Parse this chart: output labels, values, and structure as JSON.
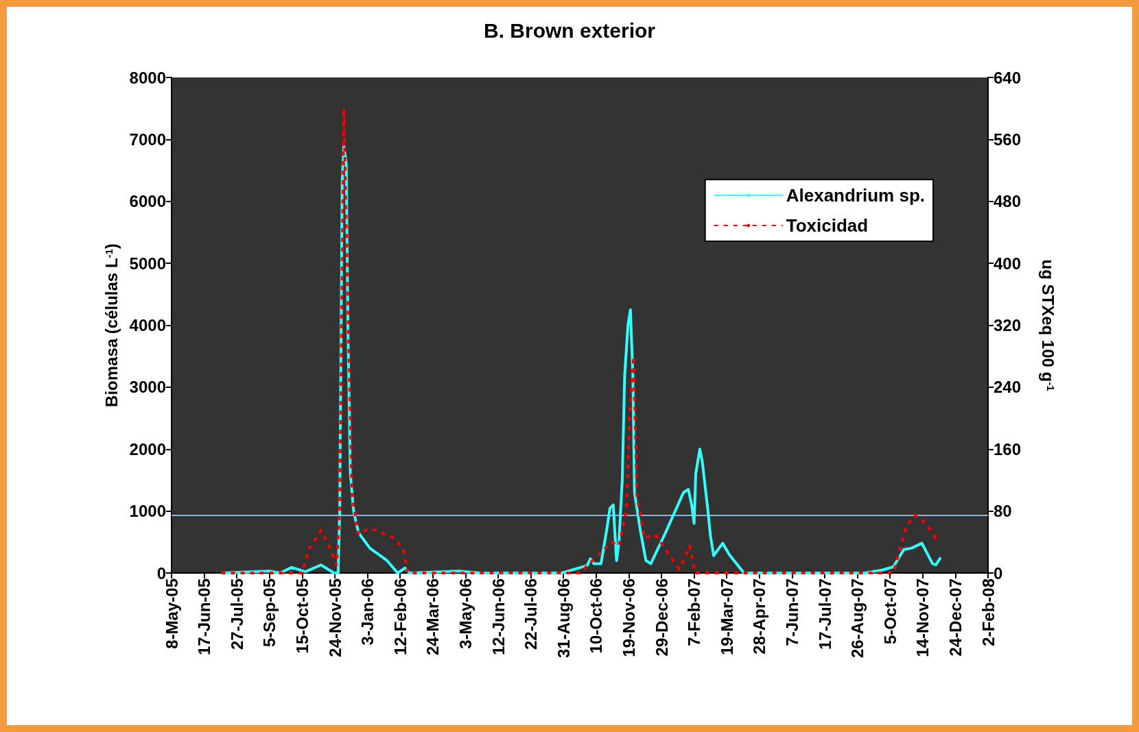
{
  "chart_data": {
    "type": "line",
    "title": "B. Brown exterior",
    "ylabel": "Biomasa (células L$^{-1}$)",
    "y2label": "ug STXeq 100 g$^{-1}$",
    "xlim": [
      "2005-05-08",
      "2008-02-02"
    ],
    "xticks": [
      {
        "value": "2005-05-08",
        "label": "8-May-05"
      },
      {
        "value": "2005-06-17",
        "label": "17-Jun-05"
      },
      {
        "value": "2005-07-27",
        "label": "27-Jul-05"
      },
      {
        "value": "2005-09-05",
        "label": "5-Sep-05"
      },
      {
        "value": "2005-10-15",
        "label": "15-Oct-05"
      },
      {
        "value": "2005-11-24",
        "label": "24-Nov-05"
      },
      {
        "value": "2006-01-03",
        "label": "3-Jan-06"
      },
      {
        "value": "2006-02-12",
        "label": "12-Feb-06"
      },
      {
        "value": "2006-03-24",
        "label": "24-Mar-06"
      },
      {
        "value": "2006-05-03",
        "label": "3-May-06"
      },
      {
        "value": "2006-06-12",
        "label": "12-Jun-06"
      },
      {
        "value": "2006-07-22",
        "label": "22-Jul-06"
      },
      {
        "value": "2006-08-31",
        "label": "31-Aug-06"
      },
      {
        "value": "2006-10-10",
        "label": "10-Oct-06"
      },
      {
        "value": "2006-11-19",
        "label": "19-Nov-06"
      },
      {
        "value": "2006-12-29",
        "label": "29-Dec-06"
      },
      {
        "value": "2007-02-07",
        "label": "7-Feb-07"
      },
      {
        "value": "2007-03-19",
        "label": "19-Mar-07"
      },
      {
        "value": "2007-04-28",
        "label": "28-Apr-07"
      },
      {
        "value": "2007-06-07",
        "label": "7-Jun-07"
      },
      {
        "value": "2007-07-17",
        "label": "17-Jul-07"
      },
      {
        "value": "2007-08-26",
        "label": "26-Aug-07"
      },
      {
        "value": "2007-10-05",
        "label": "5-Oct-07"
      },
      {
        "value": "2007-11-14",
        "label": "14-Nov-07"
      },
      {
        "value": "2007-12-24",
        "label": "24-Dec-07"
      },
      {
        "value": "2008-02-02",
        "label": "2-Feb-08"
      }
    ],
    "ylim": [
      0,
      8000
    ],
    "yticks": [
      0,
      1000,
      2000,
      3000,
      4000,
      5000,
      6000,
      7000,
      8000
    ],
    "y2lim": [
      0,
      640
    ],
    "y2ticks": [
      0,
      80,
      160,
      240,
      320,
      400,
      480,
      560,
      640
    ],
    "grid": false,
    "legend": "top right",
    "marker": "none",
    "ref_lines": [
      {
        "axis": "y2",
        "value": 75,
        "color": "#8db4e2",
        "line_style": "solid"
      }
    ],
    "series": [
      {
        "name": "Alexandrium sp.",
        "color": "#33ffff",
        "line_style": "solid",
        "x": [
          "2005-07-08",
          "2005-09-05",
          "2005-09-18",
          "2005-10-02",
          "2005-10-19",
          "2005-11-07",
          "2005-11-23",
          "2005-11-28",
          "2005-11-30",
          "2005-12-03",
          "2005-12-05",
          "2005-12-08",
          "2005-12-10",
          "2005-12-13",
          "2005-12-17",
          "2005-12-23",
          "2006-01-06",
          "2006-01-27",
          "2006-02-05",
          "2006-02-09",
          "2006-02-18",
          "2006-02-23",
          "2006-04-25",
          "2006-05-21",
          "2006-08-29",
          "2006-09-29",
          "2006-10-03",
          "2006-10-07",
          "2006-10-16",
          "2006-10-23",
          "2006-10-27",
          "2006-10-31",
          "2006-11-04",
          "2006-11-07",
          "2006-11-11",
          "2006-11-14",
          "2006-11-18",
          "2006-11-21",
          "2006-11-24",
          "2006-11-26",
          "2006-12-03",
          "2006-12-10",
          "2006-12-16",
          "2007-01-03",
          "2007-01-25",
          "2007-01-31",
          "2007-02-04",
          "2007-02-07",
          "2007-02-09",
          "2007-02-14",
          "2007-02-17",
          "2007-02-24",
          "2007-02-27",
          "2007-03-03",
          "2007-03-14",
          "2007-03-22",
          "2007-04-09",
          "2007-09-04",
          "2007-09-26",
          "2007-10-09",
          "2007-10-22",
          "2007-10-31",
          "2007-11-13",
          "2007-11-26",
          "2007-11-30",
          "2007-12-06"
        ],
        "values": [
          0,
          30,
          0,
          90,
          20,
          130,
          0,
          0,
          1000,
          6300,
          6900,
          6600,
          4000,
          1600,
          1000,
          650,
          400,
          200,
          60,
          0,
          80,
          0,
          30,
          0,
          0,
          120,
          230,
          150,
          150,
          700,
          1050,
          1100,
          200,
          500,
          1500,
          3200,
          4000,
          4250,
          3200,
          1300,
          700,
          200,
          150,
          650,
          1300,
          1350,
          1100,
          800,
          1600,
          2000,
          1800,
          1000,
          600,
          280,
          480,
          300,
          0,
          0,
          50,
          100,
          380,
          400,
          480,
          150,
          130,
          250
        ]
      },
      {
        "name": "Toxicidad",
        "color": "#ff0000",
        "line_style": "dashed",
        "axis": "y2",
        "x": [
          "2005-07-08",
          "2005-10-15",
          "2005-10-23",
          "2005-11-07",
          "2005-11-19",
          "2005-11-26",
          "2005-11-30",
          "2005-12-05",
          "2005-12-11",
          "2005-12-15",
          "2005-12-23",
          "2006-01-06",
          "2006-02-05",
          "2006-02-16",
          "2006-02-21",
          "2006-09-20",
          "2006-10-29",
          "2006-11-07",
          "2006-11-16",
          "2006-11-20",
          "2006-11-25",
          "2006-11-29",
          "2006-12-08",
          "2006-12-21",
          "2007-01-20",
          "2007-02-02",
          "2007-02-08",
          "2007-09-04",
          "2007-10-09",
          "2007-10-25",
          "2007-11-04",
          "2007-11-17",
          "2007-11-30",
          "2007-12-06"
        ],
        "values": [
          0,
          0,
          30,
          55,
          30,
          10,
          80,
          600,
          300,
          100,
          50,
          58,
          45,
          30,
          0,
          0,
          40,
          35,
          80,
          200,
          280,
          100,
          45,
          50,
          5,
          35,
          0,
          0,
          0,
          60,
          75,
          65,
          45,
          50
        ]
      }
    ]
  }
}
